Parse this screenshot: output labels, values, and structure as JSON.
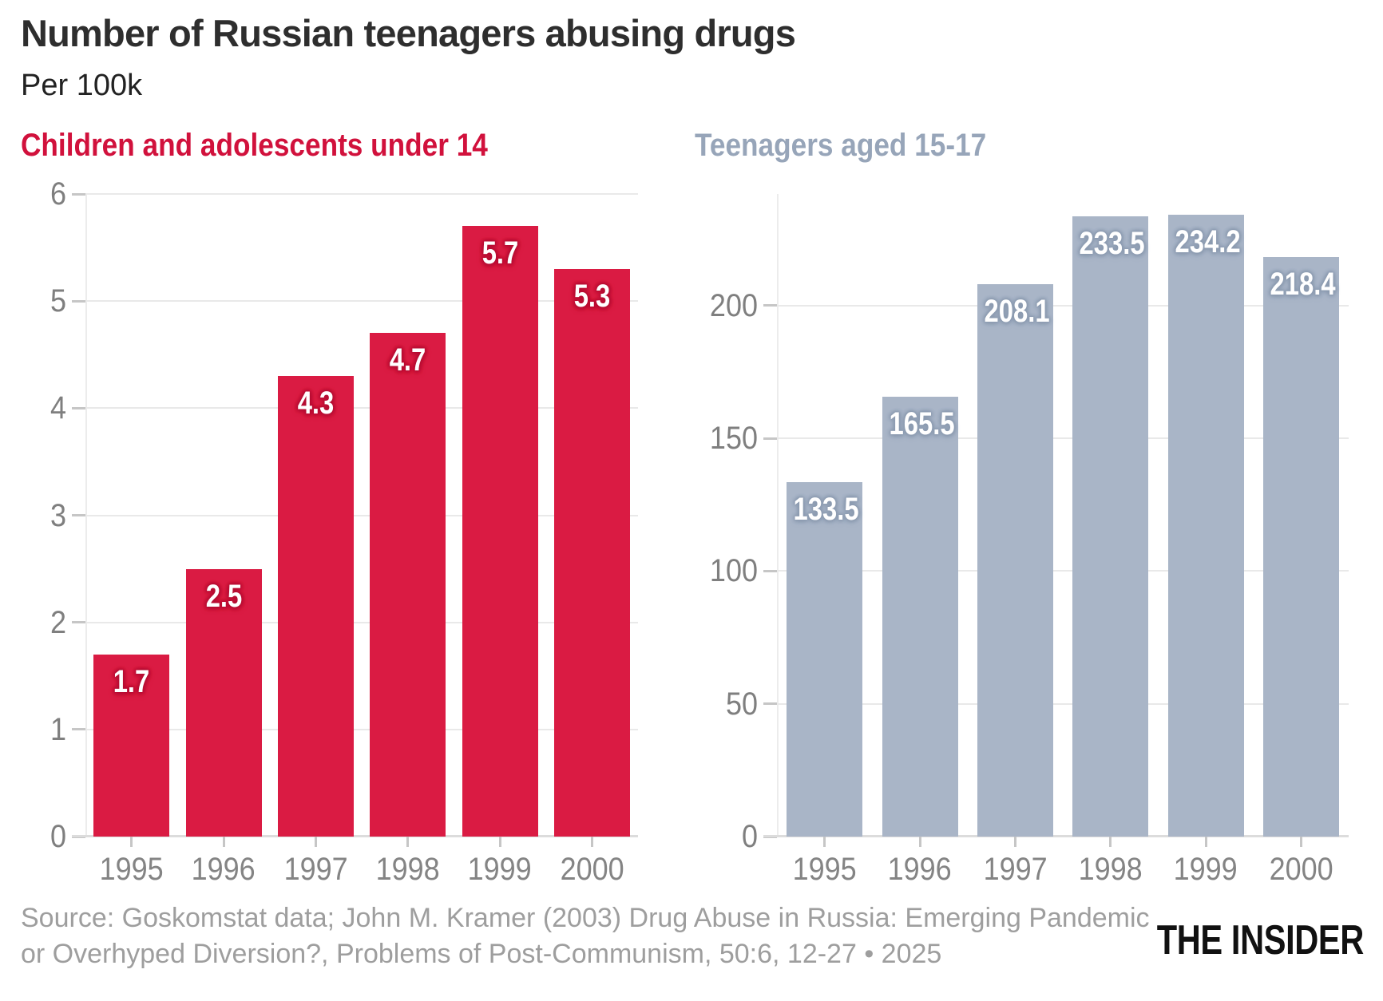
{
  "header": {
    "title": "Number of Russian teenagers abusing drugs",
    "subtitle": "Per 100k"
  },
  "chart_data": [
    {
      "type": "bar",
      "title": "Children and adolescents under 14",
      "categories": [
        "1995",
        "1996",
        "1997",
        "1998",
        "1999",
        "2000"
      ],
      "values": [
        1.7,
        2.5,
        4.3,
        4.7,
        5.7,
        5.3
      ],
      "labels": [
        "1.7",
        "2.5",
        "4.3",
        "4.7",
        "5.7",
        "5.3"
      ],
      "ylim": [
        0,
        6
      ],
      "yticks": [
        0,
        1,
        2,
        3,
        4,
        5,
        6
      ],
      "grid": true,
      "legend": "none",
      "title_color": "#d1113c",
      "bar_color": "#da1b43",
      "label_halo": "#b50e33"
    },
    {
      "type": "bar",
      "title": "Teenagers aged 15-17",
      "categories": [
        "1995",
        "1996",
        "1997",
        "1998",
        "1999",
        "2000"
      ],
      "values": [
        133.5,
        165.5,
        208.1,
        233.5,
        234.2,
        218.4
      ],
      "labels": [
        "133.5",
        "165.5",
        "208.1",
        "233.5",
        "234.2",
        "218.4"
      ],
      "ylim": [
        0,
        242
      ],
      "yticks": [
        0,
        50,
        100,
        150,
        200
      ],
      "grid": true,
      "legend": "none",
      "title_color": "#97a5b9",
      "bar_color": "#a9b5c7",
      "label_halo": "#8c9bb0"
    }
  ],
  "footer": {
    "source_line1": "Source: Goskomstat data; John M. Kramer (2003) Drug Abuse in Russia: Emerging Pandemic",
    "source_line2": "or Overhyped Diversion?, Problems of Post-Communism, 50:6, 12-27 • 2025",
    "logo": "THE INSIDER"
  }
}
